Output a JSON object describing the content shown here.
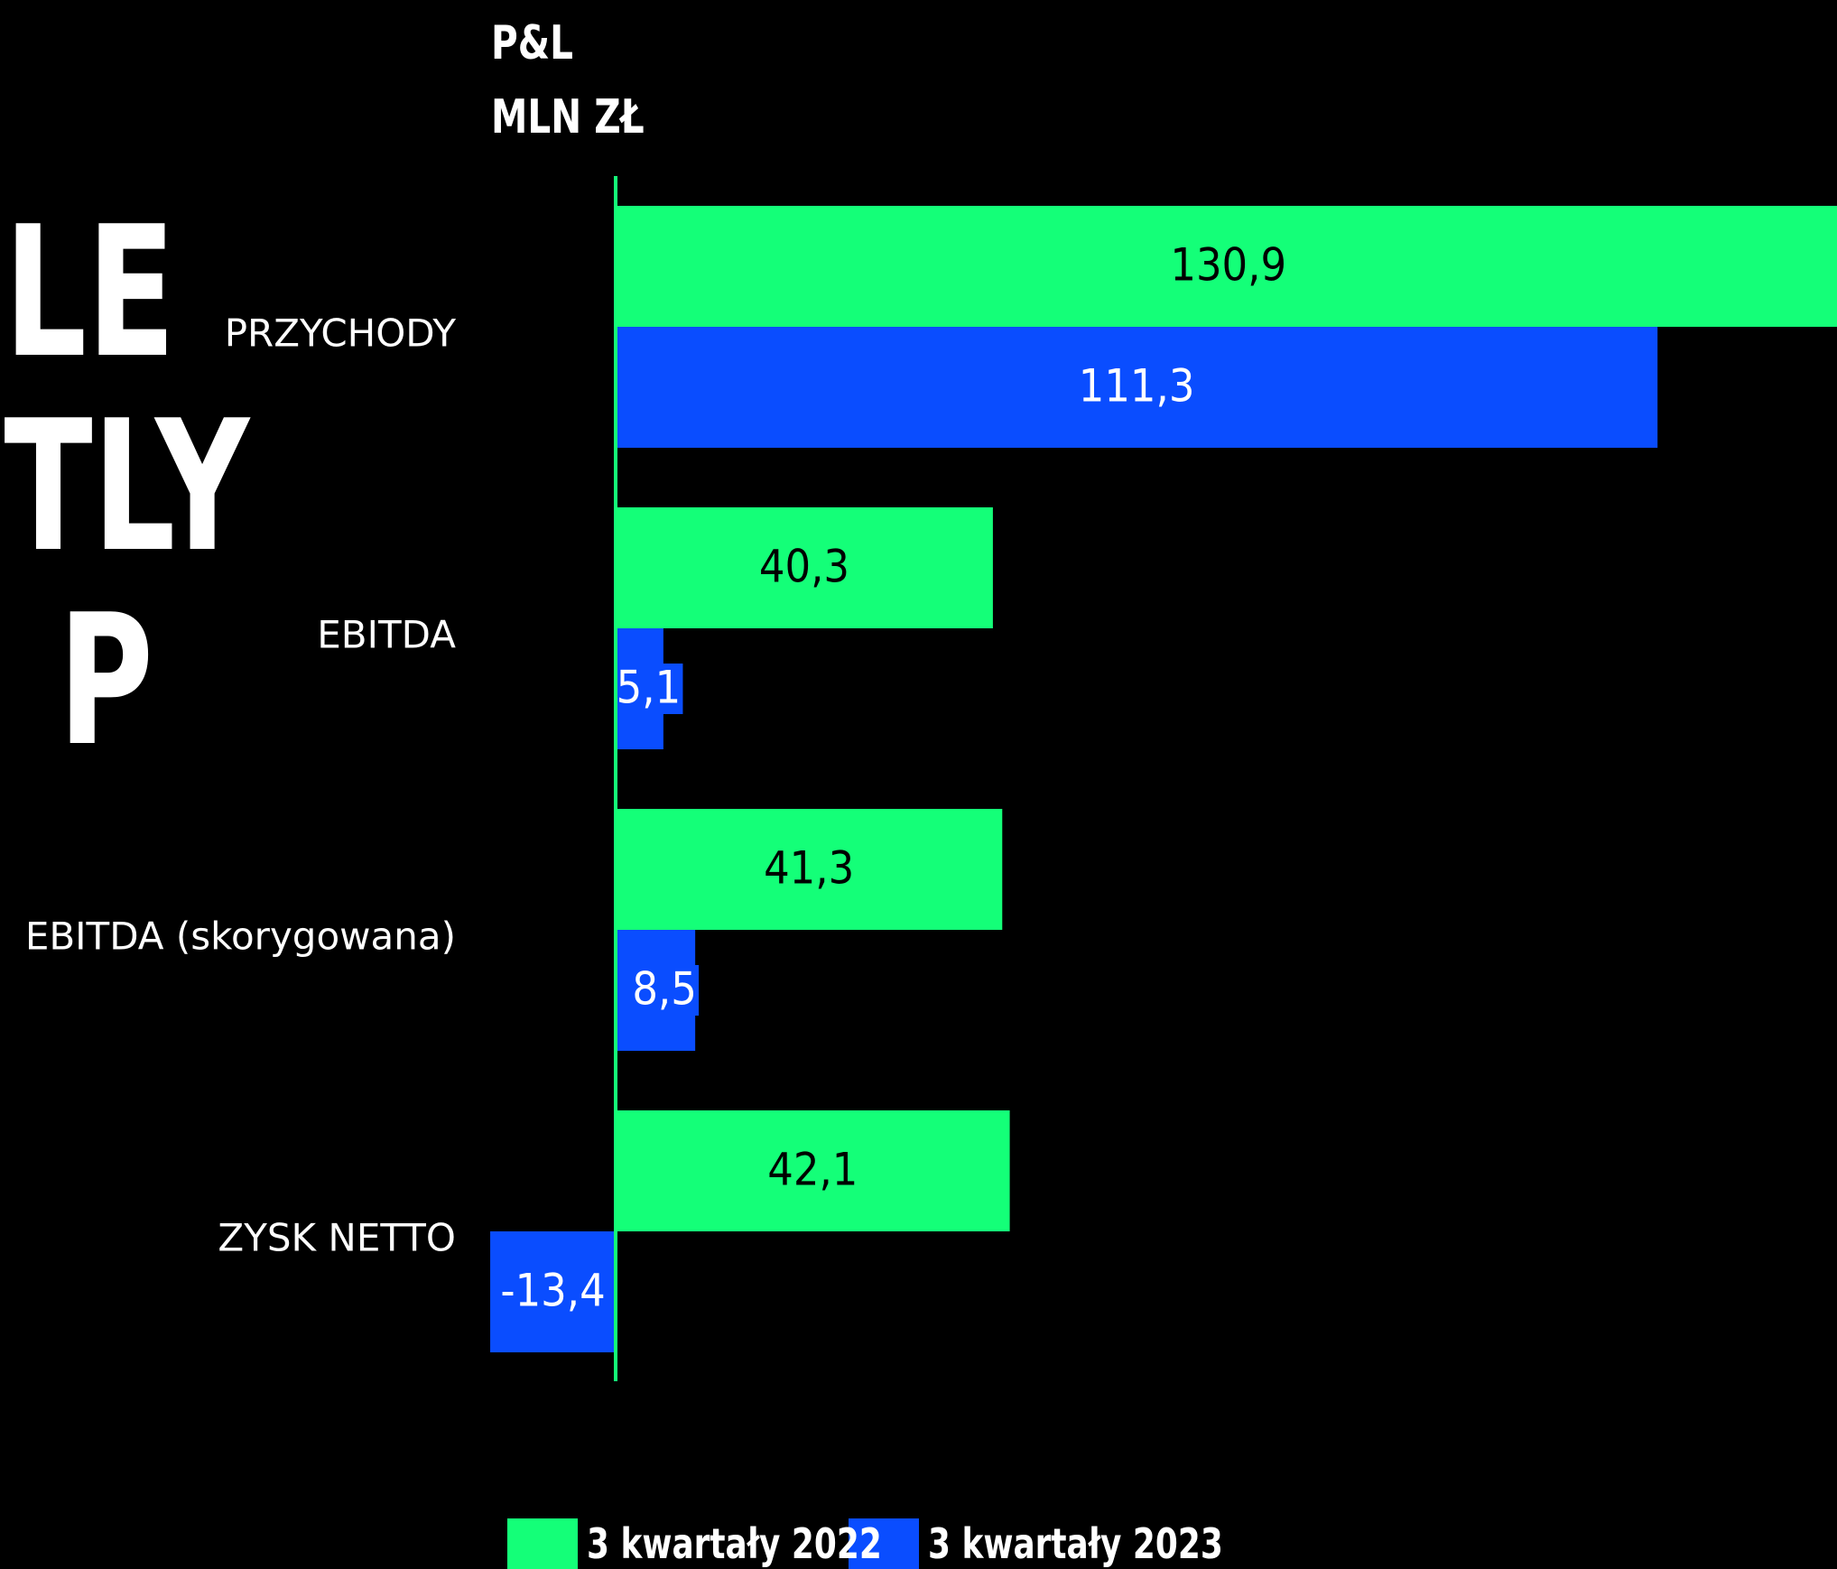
{
  "page": {
    "side_title_fragments": [
      "LE",
      "TLY",
      "P"
    ],
    "unit_title_line1": "P&L",
    "unit_title_line2": "MLN ZŁ"
  },
  "colors": {
    "background": "#000000",
    "series_2022": "#14ff78",
    "series_2023": "#0a4dff",
    "axis": "#14ff78",
    "text": "#ffffff"
  },
  "chart_data": {
    "type": "bar",
    "orientation": "horizontal",
    "categories": [
      "PRZYCHODY",
      "EBITDA",
      "EBITDA (skorygowana)",
      "ZYSK NETTO"
    ],
    "series": [
      {
        "name": "3 kwartały 2022",
        "values": [
          130.9,
          40.3,
          41.3,
          42.1
        ],
        "labels": [
          "130,9",
          "40,3",
          "41,3",
          "42,1"
        ]
      },
      {
        "name": "3 kwartały 2023",
        "values": [
          111.3,
          5.1,
          8.5,
          -13.4
        ],
        "labels": [
          "111,3",
          "5,1",
          "8,5",
          "-13,4"
        ]
      }
    ],
    "legend": "bottom",
    "grid": false
  }
}
